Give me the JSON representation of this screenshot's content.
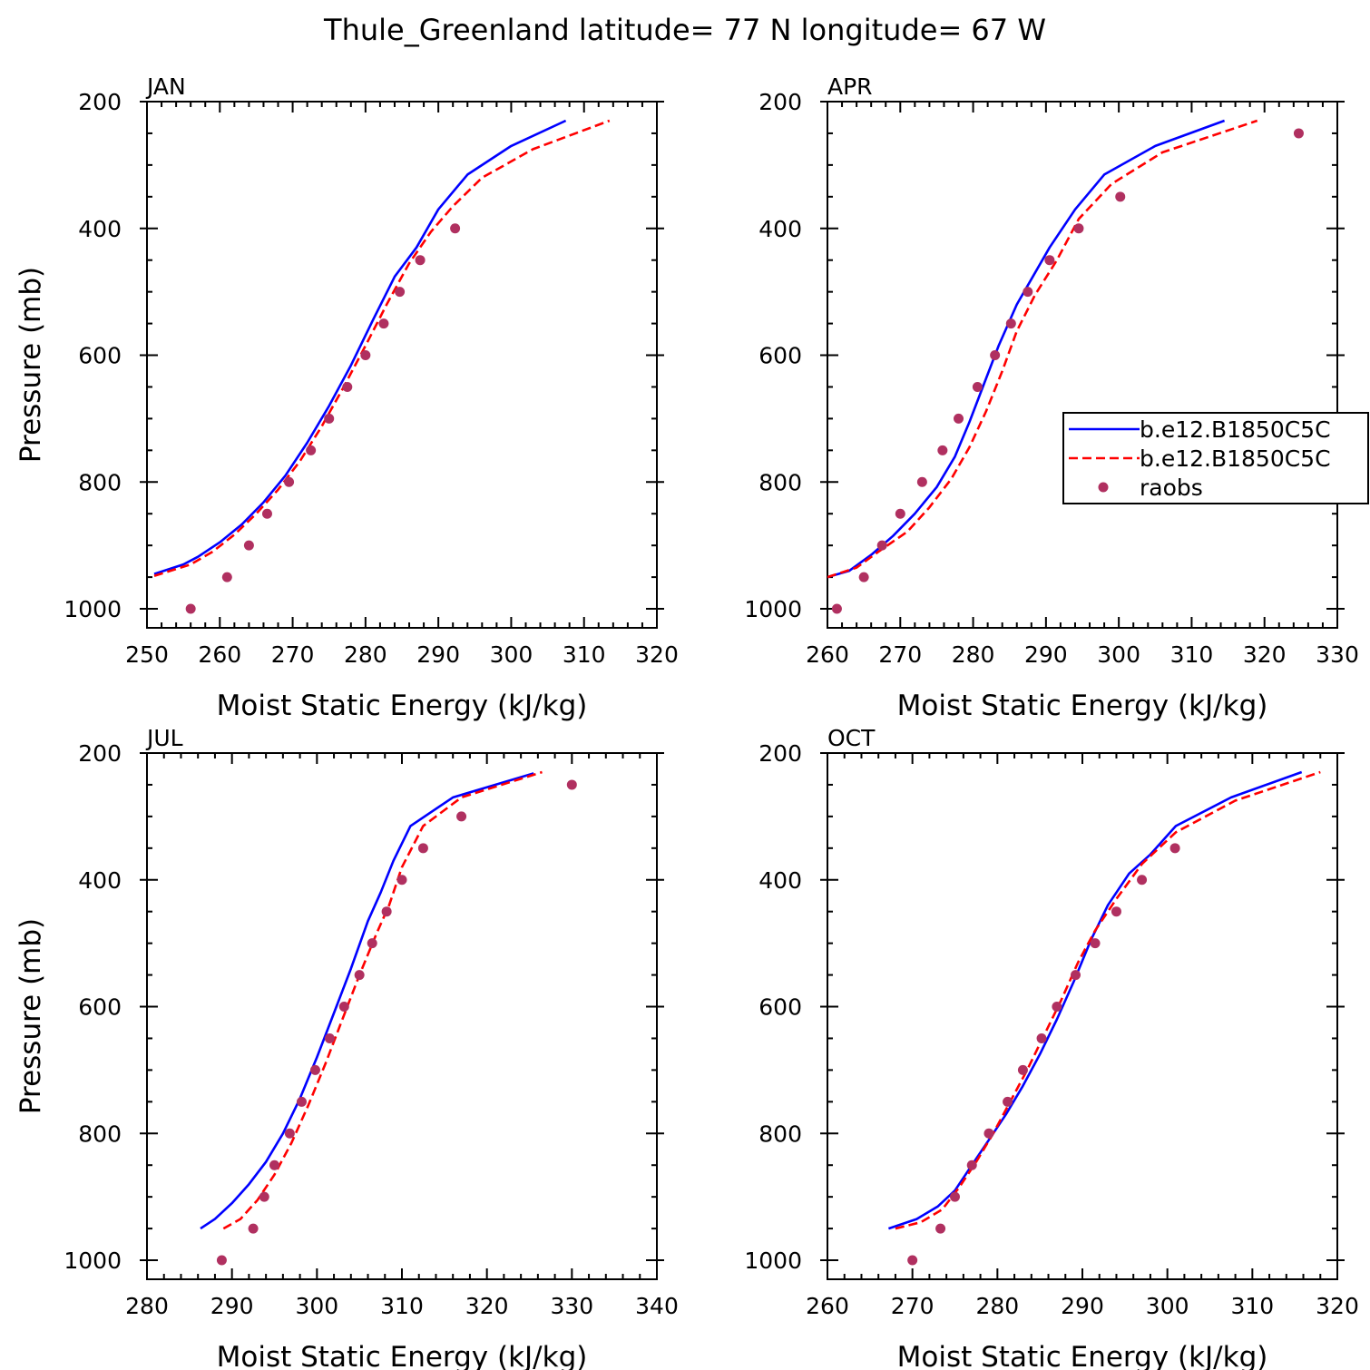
{
  "figure": {
    "title": "Thule_Greenland  latitude= 77 N longitude= 67 W"
  },
  "chart_data": [
    {
      "type": "line",
      "title": "JAN",
      "xlabel": "Moist Static Energy (kJ/kg)",
      "ylabel": "Pressure (mb)",
      "xlim": [
        250,
        320
      ],
      "ylim": [
        1030,
        200
      ],
      "xticks": [
        250,
        260,
        270,
        280,
        290,
        300,
        310,
        320
      ],
      "yticks": [
        200,
        400,
        600,
        800,
        1000
      ],
      "series": [
        {
          "name": "b.e12.B1850C5C",
          "style": "solid",
          "color": "#0000ff",
          "points": [
            [
              251,
              945
            ],
            [
              255,
              930
            ],
            [
              257,
              918
            ],
            [
              260,
              895
            ],
            [
              263,
              867
            ],
            [
              266,
              832
            ],
            [
              269,
              790
            ],
            [
              272,
              738
            ],
            [
              275,
              680
            ],
            [
              278,
              616
            ],
            [
              281,
              545
            ],
            [
              284,
              476
            ],
            [
              287,
              430
            ],
            [
              290,
              370
            ],
            [
              294,
              315
            ],
            [
              300,
              270
            ],
            [
              307.5,
              230
            ]
          ]
        },
        {
          "name": "b.e12.B1850C5C",
          "style": "dashed",
          "color": "#ff0000",
          "points": [
            [
              251,
              948
            ],
            [
              256,
              930
            ],
            [
              259,
              910
            ],
            [
              262,
              883
            ],
            [
              265,
              850
            ],
            [
              268,
              812
            ],
            [
              271,
              767
            ],
            [
              274,
              712
            ],
            [
              277,
              650
            ],
            [
              280,
              585
            ],
            [
              283,
              518
            ],
            [
              286,
              455
            ],
            [
              289,
              405
            ],
            [
              292,
              365
            ],
            [
              296,
              320
            ],
            [
              303,
              275
            ],
            [
              313.5,
              230
            ]
          ]
        },
        {
          "name": "raobs",
          "style": "marker",
          "color": "#b03060",
          "points": [
            [
              256,
              1000
            ],
            [
              261,
              950
            ],
            [
              264,
              900
            ],
            [
              266.5,
              850
            ],
            [
              269.5,
              800
            ],
            [
              272.5,
              750
            ],
            [
              275,
              700
            ],
            [
              277.5,
              650
            ],
            [
              280,
              600
            ],
            [
              282.5,
              550
            ],
            [
              284.7,
              500
            ],
            [
              287.5,
              450
            ],
            [
              292.3,
              400
            ]
          ]
        }
      ]
    },
    {
      "type": "line",
      "title": "APR",
      "xlabel": "Moist Static Energy (kJ/kg)",
      "ylabel": "",
      "xlim": [
        260,
        330
      ],
      "ylim": [
        1030,
        200
      ],
      "xticks": [
        260,
        270,
        280,
        290,
        300,
        310,
        320,
        330
      ],
      "yticks": [
        200,
        400,
        600,
        800,
        1000
      ],
      "series": [
        {
          "name": "b.e12.B1850C5C",
          "style": "solid",
          "color": "#0000ff",
          "points": [
            [
              260,
              950
            ],
            [
              263,
              940
            ],
            [
              266,
              915
            ],
            [
              269,
              885
            ],
            [
              272,
              850
            ],
            [
              275,
              808
            ],
            [
              277.5,
              760
            ],
            [
              279.5,
              705
            ],
            [
              281.5,
              645
            ],
            [
              283.5,
              585
            ],
            [
              286,
              520
            ],
            [
              288.5,
              470
            ],
            [
              290.5,
              430
            ],
            [
              294,
              370
            ],
            [
              298,
              315
            ],
            [
              305,
              270
            ],
            [
              314.5,
              230
            ]
          ]
        },
        {
          "name": "b.e12.B1850C5C",
          "style": "dashed",
          "color": "#ff0000",
          "points": [
            [
              260,
              950
            ],
            [
              264,
              935
            ],
            [
              267,
              910
            ],
            [
              271,
              878
            ],
            [
              274,
              840
            ],
            [
              277,
              795
            ],
            [
              279.5,
              745
            ],
            [
              281.8,
              688
            ],
            [
              284,
              625
            ],
            [
              286,
              562
            ],
            [
              288.5,
              505
            ],
            [
              291.5,
              450
            ],
            [
              294.5,
              385
            ],
            [
              299,
              330
            ],
            [
              306,
              280
            ],
            [
              319,
              230
            ]
          ]
        },
        {
          "name": "raobs",
          "style": "marker",
          "color": "#b03060",
          "points": [
            [
              261.3,
              1000
            ],
            [
              265,
              950
            ],
            [
              267.5,
              900
            ],
            [
              270,
              850
            ],
            [
              273,
              800
            ],
            [
              275.8,
              750
            ],
            [
              278,
              700
            ],
            [
              280.6,
              650
            ],
            [
              283,
              600
            ],
            [
              285.2,
              550
            ],
            [
              287.5,
              500
            ],
            [
              290.5,
              450
            ],
            [
              294.5,
              400
            ],
            [
              300.2,
              350
            ],
            [
              324.7,
              250
            ]
          ]
        }
      ]
    },
    {
      "type": "line",
      "title": "JUL",
      "xlabel": "Moist Static Energy (kJ/kg)",
      "ylabel": "Pressure (mb)",
      "xlim": [
        280,
        340
      ],
      "ylim": [
        1030,
        200
      ],
      "xticks": [
        280,
        290,
        300,
        310,
        320,
        330,
        340
      ],
      "yticks": [
        200,
        400,
        600,
        800,
        1000
      ],
      "series": [
        {
          "name": "b.e12.B1850C5C",
          "style": "solid",
          "color": "#0000ff",
          "points": [
            [
              286.3,
              950
            ],
            [
              288,
              935
            ],
            [
              290,
              910
            ],
            [
              292,
              880
            ],
            [
              294,
              845
            ],
            [
              296,
              800
            ],
            [
              298,
              745
            ],
            [
              300,
              680
            ],
            [
              302,
              610
            ],
            [
              304,
              540
            ],
            [
              306,
              465
            ],
            [
              307.5,
              420
            ],
            [
              309,
              370
            ],
            [
              311,
              315
            ],
            [
              316,
              270
            ],
            [
              325.5,
              232
            ]
          ]
        },
        {
          "name": "b.e12.B1850C5C",
          "style": "dashed",
          "color": "#ff0000",
          "points": [
            [
              289,
              950
            ],
            [
              291,
              935
            ],
            [
              293,
              905
            ],
            [
              295,
              865
            ],
            [
              297,
              815
            ],
            [
              299,
              755
            ],
            [
              301,
              690
            ],
            [
              303,
              620
            ],
            [
              305,
              550
            ],
            [
              307,
              485
            ],
            [
              308.5,
              440
            ],
            [
              310,
              380
            ],
            [
              312.5,
              315
            ],
            [
              317,
              270
            ],
            [
              326.5,
              230
            ]
          ]
        },
        {
          "name": "raobs",
          "style": "marker",
          "color": "#b03060",
          "points": [
            [
              288.8,
              1000
            ],
            [
              292.5,
              950
            ],
            [
              293.8,
              900
            ],
            [
              295,
              850
            ],
            [
              296.8,
              800
            ],
            [
              298.2,
              750
            ],
            [
              299.8,
              700
            ],
            [
              301.5,
              650
            ],
            [
              303.2,
              600
            ],
            [
              305,
              550
            ],
            [
              306.5,
              500
            ],
            [
              308.2,
              450
            ],
            [
              310,
              400
            ],
            [
              312.5,
              350
            ],
            [
              317,
              300
            ],
            [
              330,
              250
            ]
          ]
        }
      ]
    },
    {
      "type": "line",
      "title": "OCT",
      "xlabel": "Moist Static Energy (kJ/kg)",
      "ylabel": "",
      "xlim": [
        260,
        320
      ],
      "ylim": [
        1030,
        200
      ],
      "xticks": [
        260,
        270,
        280,
        290,
        300,
        310,
        320
      ],
      "yticks": [
        200,
        400,
        600,
        800,
        1000
      ],
      "series": [
        {
          "name": "b.e12.B1850C5C",
          "style": "solid",
          "color": "#0000ff",
          "points": [
            [
              267.2,
              950
            ],
            [
              270.5,
              935
            ],
            [
              273,
              915
            ],
            [
              275,
              890
            ],
            [
              277,
              850
            ],
            [
              279,
              810
            ],
            [
              281,
              770
            ],
            [
              283,
              725
            ],
            [
              285,
              675
            ],
            [
              287,
              620
            ],
            [
              289,
              560
            ],
            [
              291,
              495
            ],
            [
              293,
              440
            ],
            [
              295.5,
              390
            ],
            [
              298,
              360
            ],
            [
              301,
              315
            ],
            [
              307.5,
              270
            ],
            [
              315.8,
              230
            ]
          ]
        },
        {
          "name": "b.e12.B1850C5C",
          "style": "dashed",
          "color": "#ff0000",
          "points": [
            [
              268,
              950
            ],
            [
              271,
              940
            ],
            [
              273.5,
              920
            ],
            [
              275.5,
              885
            ],
            [
              277.5,
              845
            ],
            [
              279.5,
              800
            ],
            [
              281.5,
              750
            ],
            [
              283.5,
              700
            ],
            [
              285.5,
              645
            ],
            [
              287.5,
              590
            ],
            [
              289.5,
              530
            ],
            [
              291.5,
              480
            ],
            [
              294,
              430
            ],
            [
              297,
              375
            ],
            [
              301,
              325
            ],
            [
              308,
              275
            ],
            [
              318,
              230
            ]
          ]
        },
        {
          "name": "raobs",
          "style": "marker",
          "color": "#b03060",
          "points": [
            [
              270,
              1000
            ],
            [
              273.3,
              950
            ],
            [
              275,
              900
            ],
            [
              277,
              850
            ],
            [
              279,
              800
            ],
            [
              281.2,
              750
            ],
            [
              283,
              700
            ],
            [
              285.2,
              650
            ],
            [
              287,
              600
            ],
            [
              289.2,
              550
            ],
            [
              291.5,
              500
            ],
            [
              294,
              450
            ],
            [
              297,
              400
            ],
            [
              300.9,
              350
            ]
          ]
        }
      ]
    }
  ],
  "legend": {
    "placement": "center-right",
    "entries": [
      {
        "label": "b.e12.B1850C5C",
        "style": "solid",
        "color": "#0000ff"
      },
      {
        "label": "b.e12.B1850C5C",
        "style": "dashed",
        "color": "#ff0000"
      },
      {
        "label": "raobs",
        "style": "marker",
        "color": "#b03060"
      }
    ]
  }
}
